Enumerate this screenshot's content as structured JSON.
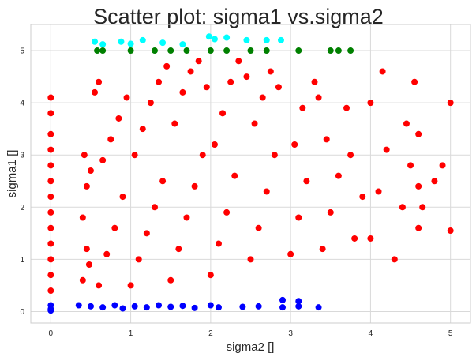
{
  "chart_data": {
    "type": "scatter",
    "title": "Scatter plot: sigma1 vs.sigma2",
    "xlabel": "sigma2 []",
    "ylabel": "sigma1 []",
    "xlim": [
      -0.25,
      5.25
    ],
    "ylim": [
      -0.22,
      5.5
    ],
    "x_ticks": [
      "0",
      "1",
      "2",
      "3",
      "4",
      "5"
    ],
    "y_ticks": [
      "0",
      "1",
      "2",
      "3",
      "4",
      "5"
    ],
    "grid": true,
    "legend": "none",
    "series": [
      {
        "color": "#ff0000",
        "points": [
          [
            0,
            0.4
          ],
          [
            0,
            0.7
          ],
          [
            0,
            1.0
          ],
          [
            0,
            1.3
          ],
          [
            0,
            1.6
          ],
          [
            0,
            1.9
          ],
          [
            0,
            2.2
          ],
          [
            0,
            2.5
          ],
          [
            0,
            2.8
          ],
          [
            0,
            3.1
          ],
          [
            0,
            3.4
          ],
          [
            0,
            3.8
          ],
          [
            0,
            4.1
          ],
          [
            0.4,
            0.6
          ],
          [
            0.45,
            1.2
          ],
          [
            0.4,
            1.8
          ],
          [
            0.45,
            2.4
          ],
          [
            0.42,
            3.0
          ],
          [
            0.48,
            0.9
          ],
          [
            0.5,
            2.7
          ],
          [
            0.6,
            0.5
          ],
          [
            0.7,
            1.1
          ],
          [
            0.8,
            1.6
          ],
          [
            0.9,
            2.2
          ],
          [
            0.65,
            2.9
          ],
          [
            0.75,
            3.3
          ],
          [
            0.85,
            3.7
          ],
          [
            0.95,
            4.1
          ],
          [
            0.6,
            4.4
          ],
          [
            0.55,
            4.2
          ],
          [
            1.0,
            0.5
          ],
          [
            1.1,
            1.0
          ],
          [
            1.2,
            1.5
          ],
          [
            1.3,
            2.0
          ],
          [
            1.4,
            2.5
          ],
          [
            1.05,
            3.0
          ],
          [
            1.15,
            3.5
          ],
          [
            1.25,
            4.0
          ],
          [
            1.35,
            4.4
          ],
          [
            1.45,
            4.7
          ],
          [
            1.5,
            0.6
          ],
          [
            1.6,
            1.2
          ],
          [
            1.7,
            1.8
          ],
          [
            1.8,
            2.4
          ],
          [
            1.9,
            3.0
          ],
          [
            1.55,
            3.6
          ],
          [
            1.65,
            4.2
          ],
          [
            1.75,
            4.6
          ],
          [
            1.85,
            4.8
          ],
          [
            1.95,
            4.3
          ],
          [
            2.0,
            0.7
          ],
          [
            2.1,
            1.3
          ],
          [
            2.2,
            1.9
          ],
          [
            2.3,
            2.6
          ],
          [
            2.05,
            3.2
          ],
          [
            2.15,
            3.8
          ],
          [
            2.25,
            4.4
          ],
          [
            2.35,
            4.8
          ],
          [
            2.45,
            4.5
          ],
          [
            2.5,
            1.0
          ],
          [
            2.6,
            1.6
          ],
          [
            2.7,
            2.3
          ],
          [
            2.8,
            3.0
          ],
          [
            2.55,
            3.6
          ],
          [
            2.65,
            4.1
          ],
          [
            2.75,
            4.6
          ],
          [
            2.85,
            4.3
          ],
          [
            3.0,
            1.1
          ],
          [
            3.1,
            1.8
          ],
          [
            3.2,
            2.5
          ],
          [
            3.05,
            3.2
          ],
          [
            3.15,
            3.9
          ],
          [
            3.3,
            4.4
          ],
          [
            3.35,
            4.1
          ],
          [
            3.4,
            1.2
          ],
          [
            3.5,
            1.9
          ],
          [
            3.6,
            2.6
          ],
          [
            3.45,
            3.3
          ],
          [
            3.7,
            3.9
          ],
          [
            3.8,
            1.4
          ],
          [
            3.9,
            2.2
          ],
          [
            3.75,
            3.0
          ],
          [
            4.0,
            1.4
          ],
          [
            4.1,
            2.3
          ],
          [
            4.2,
            3.1
          ],
          [
            4.0,
            4.0
          ],
          [
            4.15,
            4.6
          ],
          [
            4.3,
            1.0
          ],
          [
            4.4,
            2.0
          ],
          [
            4.45,
            3.6
          ],
          [
            4.55,
            4.4
          ],
          [
            4.5,
            2.8
          ],
          [
            4.6,
            1.6
          ],
          [
            4.6,
            2.4
          ],
          [
            4.6,
            3.4
          ],
          [
            4.65,
            2.0
          ],
          [
            4.8,
            2.5
          ],
          [
            4.9,
            2.8
          ],
          [
            5.0,
            1.55
          ],
          [
            5.0,
            4.0
          ]
        ]
      },
      {
        "color": "#0000ff",
        "points": [
          [
            0,
            0.05
          ],
          [
            0,
            0.12
          ],
          [
            0,
            0.02
          ],
          [
            0.35,
            0.12
          ],
          [
            0.5,
            0.1
          ],
          [
            0.65,
            0.08
          ],
          [
            0.8,
            0.12
          ],
          [
            0.9,
            0.06
          ],
          [
            1.05,
            0.1
          ],
          [
            1.2,
            0.08
          ],
          [
            1.35,
            0.12
          ],
          [
            1.5,
            0.09
          ],
          [
            1.65,
            0.11
          ],
          [
            1.8,
            0.07
          ],
          [
            2.0,
            0.12
          ],
          [
            2.1,
            0.08
          ],
          [
            2.4,
            0.09
          ],
          [
            2.6,
            0.1
          ],
          [
            2.9,
            0.22
          ],
          [
            2.9,
            0.08
          ],
          [
            3.1,
            0.2
          ],
          [
            3.1,
            0.1
          ],
          [
            3.35,
            0.08
          ]
        ]
      },
      {
        "color": "#008000",
        "points": [
          [
            0.58,
            5.0
          ],
          [
            0.65,
            5.0
          ],
          [
            1.0,
            5.0
          ],
          [
            1.3,
            5.0
          ],
          [
            1.5,
            5.0
          ],
          [
            1.7,
            5.0
          ],
          [
            2.0,
            5.0
          ],
          [
            2.2,
            5.0
          ],
          [
            2.5,
            5.0
          ],
          [
            2.7,
            5.0
          ],
          [
            3.1,
            5.0
          ],
          [
            3.5,
            5.0
          ],
          [
            3.6,
            5.0
          ],
          [
            3.75,
            5.0
          ]
        ]
      },
      {
        "color": "#00ffff",
        "points": [
          [
            0.55,
            5.17
          ],
          [
            0.65,
            5.12
          ],
          [
            0.88,
            5.17
          ],
          [
            1.0,
            5.13
          ],
          [
            1.15,
            5.2
          ],
          [
            1.4,
            5.15
          ],
          [
            1.65,
            5.12
          ],
          [
            1.98,
            5.27
          ],
          [
            2.05,
            5.22
          ],
          [
            2.2,
            5.25
          ],
          [
            2.45,
            5.2
          ],
          [
            2.7,
            5.2
          ],
          [
            2.88,
            5.2
          ]
        ]
      }
    ]
  }
}
